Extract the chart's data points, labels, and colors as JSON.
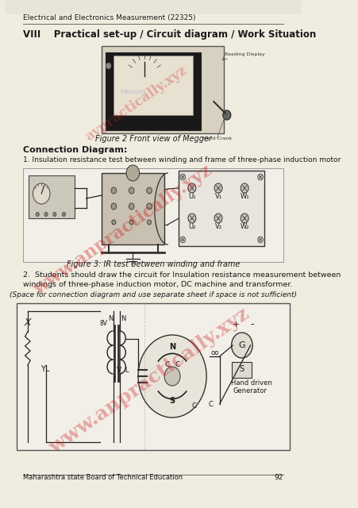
{
  "header_text": "Electrical and Electronics Measurement (22325)",
  "footer_text": "Maharashtra state Board of Technical Education",
  "footer_page": "92",
  "section_title": "VIII    Practical set-up / Circuit diagram / Work Situation",
  "fig2_caption": "Figure 2 Front view of Megger",
  "connection_diagram_title": "Connection Diagram:",
  "point1_text": "1. Insulation resistance test between winding and frame of three-phase induction motor",
  "fig3_caption": "Figure 3: IR test between winding and frame",
  "point2_line1": "2.  Students should draw the circuit for Insulation resistance measurement between",
  "point2_line2": "windings of three-phase induction motor, DC machine and transformer.",
  "space_text": "(Space for connection diagram and use separate sheet if space is not sufficient)",
  "watermark_text": "www.anpractically.xyz",
  "bg_color": "#f0ece0",
  "page_color": "#f8f6f0",
  "text_color": "#1a1a1a",
  "border_color": "#888888"
}
